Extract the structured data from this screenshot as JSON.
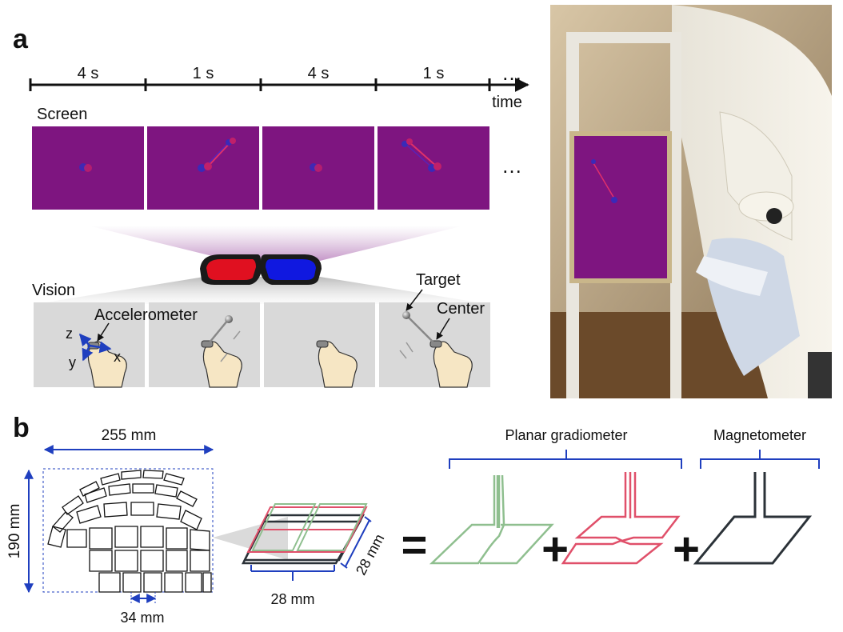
{
  "panels": {
    "a": "a",
    "b": "b"
  },
  "timeline": {
    "segments": [
      "4 s",
      "1 s",
      "4 s",
      "1 s"
    ],
    "ellipsis": "…",
    "axis_label": "time"
  },
  "screen": {
    "label": "Screen",
    "ellipsis": "…"
  },
  "vision": {
    "label": "Vision",
    "accelerometer": "Accelerometer",
    "target": "Target",
    "center": "Center",
    "axes": {
      "z": "z",
      "y": "y",
      "x": "x"
    }
  },
  "sensor": {
    "helmet_width": "255 mm",
    "helmet_height": "190 mm",
    "sensor_pitch": "34 mm",
    "coil_width": "28 mm",
    "coil_depth": "28 mm"
  },
  "equation": {
    "planar_gradiometer": "Planar gradiometer",
    "magnetometer": "Magnetometer",
    "equals": "=",
    "plus": "+"
  },
  "colors": {
    "screen_purple": "#7e1580",
    "vision_gray": "#d9d9d9",
    "green_coil": "#8fbf8f",
    "red_coil": "#e0506a",
    "dark_coil": "#2b3238",
    "bracket_blue": "#1f3fbf"
  }
}
